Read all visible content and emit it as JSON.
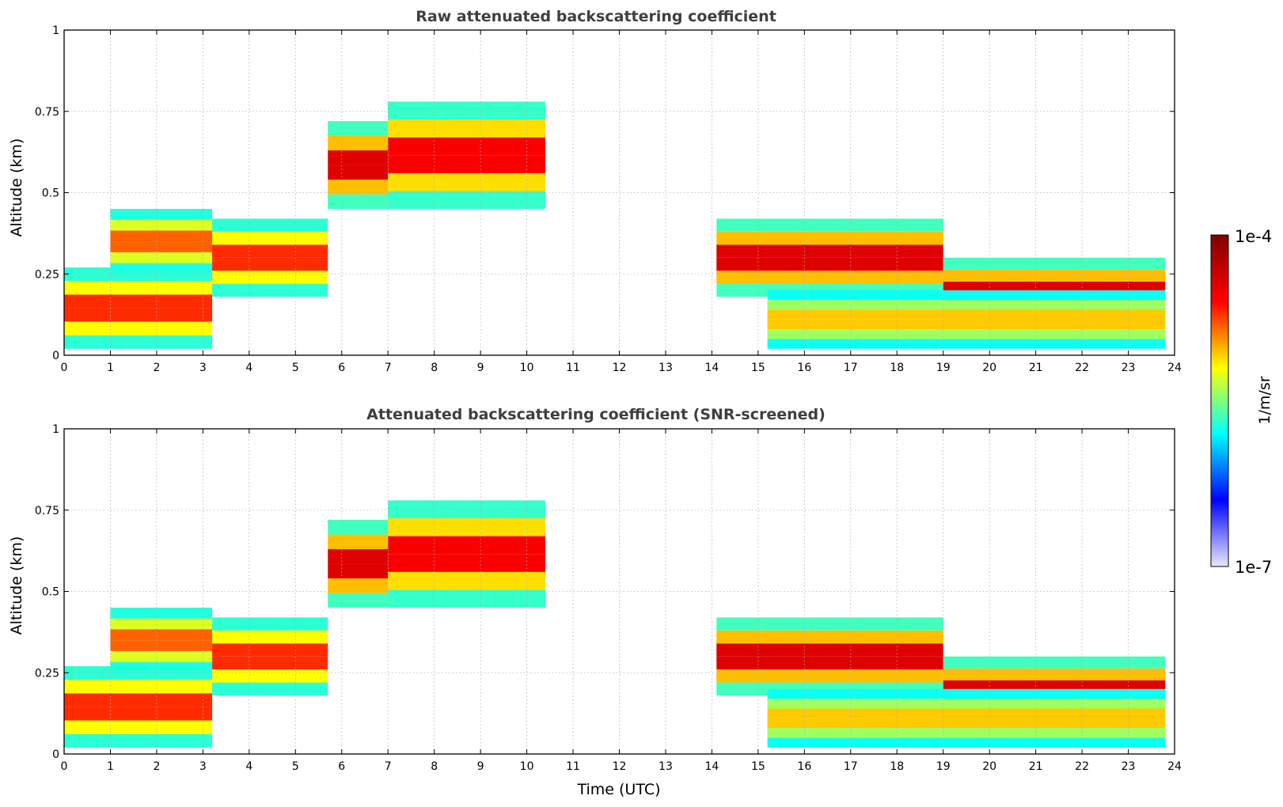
{
  "chart_data": [
    {
      "type": "heatmap",
      "title": "Raw attenuated backscattering coefficient",
      "xlabel": "",
      "ylabel": "Altitude (km)",
      "xlim": [
        0,
        24
      ],
      "ylim": [
        0,
        1
      ],
      "xticks": [
        "0",
        "1",
        "2",
        "3",
        "4",
        "5",
        "6",
        "7",
        "8",
        "9",
        "10",
        "11",
        "12",
        "13",
        "14",
        "15",
        "16",
        "17",
        "18",
        "19",
        "20",
        "21",
        "22",
        "23",
        "24"
      ],
      "yticks": [
        "0",
        "0.25",
        "0.5",
        "0.75",
        "1"
      ],
      "grid": true,
      "layers": [
        {
          "x_from": 0.0,
          "x_to": 3.2,
          "y_bottom": 0.02,
          "y_top": 0.27,
          "level": 0.85
        },
        {
          "x_from": 1.0,
          "x_to": 3.2,
          "y_bottom": 0.25,
          "y_top": 0.45,
          "level": 0.8
        },
        {
          "x_from": 3.2,
          "x_to": 5.7,
          "y_bottom": 0.18,
          "y_top": 0.42,
          "level": 0.85
        },
        {
          "x_from": 5.7,
          "x_to": 7.0,
          "y_bottom": 0.45,
          "y_top": 0.72,
          "level": 0.95
        },
        {
          "x_from": 7.0,
          "x_to": 10.4,
          "y_bottom": 0.45,
          "y_top": 0.78,
          "level": 0.9
        },
        {
          "x_from": 14.1,
          "x_to": 19.0,
          "y_bottom": 0.18,
          "y_top": 0.42,
          "level": 0.95
        },
        {
          "x_from": 19.0,
          "x_to": 23.8,
          "y_bottom": 0.08,
          "y_top": 0.3,
          "level": 0.95
        },
        {
          "x_from": 15.2,
          "x_to": 23.8,
          "y_bottom": 0.02,
          "y_top": 0.2,
          "level": 0.7
        }
      ]
    },
    {
      "type": "heatmap",
      "title": "Attenuated backscattering coefficient (SNR-screened)",
      "xlabel": "Time (UTC)",
      "ylabel": "Altitude (km)",
      "xlim": [
        0,
        24
      ],
      "ylim": [
        0,
        1
      ],
      "xticks": [
        "0",
        "1",
        "2",
        "3",
        "4",
        "5",
        "6",
        "7",
        "8",
        "9",
        "10",
        "11",
        "12",
        "13",
        "14",
        "15",
        "16",
        "17",
        "18",
        "19",
        "20",
        "21",
        "22",
        "23",
        "24"
      ],
      "yticks": [
        "0",
        "0.25",
        "0.5",
        "0.75",
        "1"
      ],
      "grid": true,
      "layers": [
        {
          "x_from": 0.0,
          "x_to": 3.2,
          "y_bottom": 0.02,
          "y_top": 0.27,
          "level": 0.85
        },
        {
          "x_from": 1.0,
          "x_to": 3.2,
          "y_bottom": 0.25,
          "y_top": 0.45,
          "level": 0.8
        },
        {
          "x_from": 3.2,
          "x_to": 5.7,
          "y_bottom": 0.18,
          "y_top": 0.42,
          "level": 0.85
        },
        {
          "x_from": 5.7,
          "x_to": 7.0,
          "y_bottom": 0.45,
          "y_top": 0.72,
          "level": 0.95
        },
        {
          "x_from": 7.0,
          "x_to": 10.4,
          "y_bottom": 0.45,
          "y_top": 0.78,
          "level": 0.9
        },
        {
          "x_from": 14.1,
          "x_to": 19.0,
          "y_bottom": 0.18,
          "y_top": 0.42,
          "level": 0.95
        },
        {
          "x_from": 19.0,
          "x_to": 23.8,
          "y_bottom": 0.08,
          "y_top": 0.3,
          "level": 0.95
        },
        {
          "x_from": 15.2,
          "x_to": 23.8,
          "y_bottom": 0.02,
          "y_top": 0.2,
          "level": 0.7
        }
      ],
      "saturated_color": "#000000"
    }
  ],
  "colorbar": {
    "label": "1/m/sr",
    "max_label": "1e-4",
    "min_label": "1e-7",
    "colors": [
      "#e8e8ff",
      "#0000ff",
      "#00ffff",
      "#ffff00",
      "#ff0000",
      "#800000"
    ]
  }
}
